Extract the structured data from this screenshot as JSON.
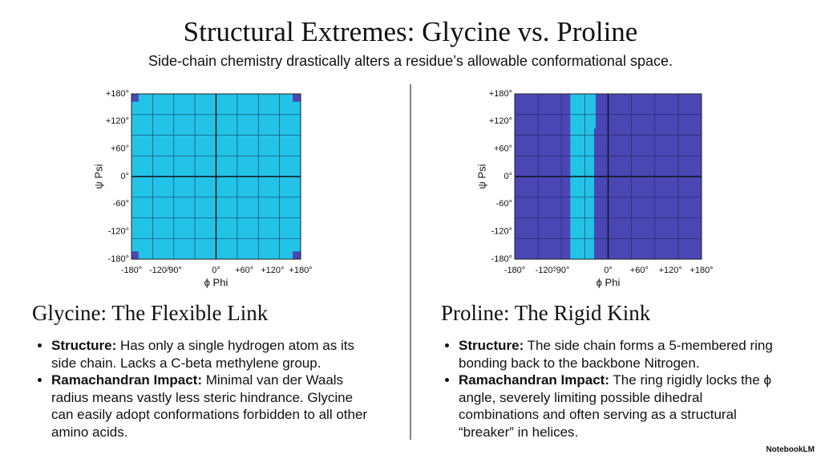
{
  "title": "Structural Extremes: Glycine vs. Proline",
  "subtitle": "Side-chain chemistry drastically alters a residue’s allowable conformational space.",
  "chart_data": [
    {
      "type": "region",
      "xlabel": "ϕ Phi",
      "ylabel": "ψ Psi",
      "xlim": [
        -180,
        180
      ],
      "ylim": [
        -180,
        180
      ],
      "xticks": [
        {
          "value": -180,
          "label": "-180°"
        },
        {
          "value": -120,
          "label": "-120°"
        },
        {
          "value": -90,
          "label": "-90°"
        },
        {
          "value": 0,
          "label": "0°"
        },
        {
          "value": 60,
          "label": "+60°"
        },
        {
          "value": 120,
          "label": "+120°"
        },
        {
          "value": 180,
          "label": "+180°"
        }
      ],
      "yticks": [
        {
          "value": 180,
          "label": "+180°"
        },
        {
          "value": 120,
          "label": "+120°"
        },
        {
          "value": 60,
          "label": "+60°"
        },
        {
          "value": 0,
          "label": "0°"
        },
        {
          "value": -60,
          "label": "-60°"
        },
        {
          "value": -120,
          "label": "-120°"
        },
        {
          "value": -180,
          "label": "-180°"
        }
      ],
      "xgrid": [
        -135,
        -90,
        -45,
        0,
        45,
        90,
        135
      ],
      "ygrid": [
        -135,
        -90,
        -45,
        0,
        45,
        90,
        135
      ],
      "background": "#4a46b4",
      "regions": [
        {
          "x": [
            -180,
            180
          ],
          "y": [
            -180,
            180
          ],
          "color": "#22c3e6"
        },
        {
          "x": [
            -180,
            -165
          ],
          "y": [
            163,
            180
          ],
          "color": "#4a46b4"
        },
        {
          "x": [
            163,
            180
          ],
          "y": [
            163,
            180
          ],
          "color": "#4a46b4"
        },
        {
          "x": [
            -180,
            -165
          ],
          "y": [
            -180,
            -163
          ],
          "color": "#4a46b4"
        },
        {
          "x": [
            163,
            180
          ],
          "y": [
            -180,
            -163
          ],
          "color": "#4a46b4"
        }
      ]
    },
    {
      "type": "region",
      "xlabel": "ϕ Phi",
      "ylabel": "ψ Psi",
      "xlim": [
        -180,
        180
      ],
      "ylim": [
        -180,
        180
      ],
      "xticks": [
        {
          "value": -180,
          "label": "-180°"
        },
        {
          "value": -120,
          "label": "-120°"
        },
        {
          "value": -90,
          "label": "-90°"
        },
        {
          "value": 0,
          "label": "0°"
        },
        {
          "value": 60,
          "label": "+60°"
        },
        {
          "value": 120,
          "label": "+120°"
        },
        {
          "value": 180,
          "label": "+180°"
        }
      ],
      "yticks": [
        {
          "value": 180,
          "label": "+180°"
        },
        {
          "value": 120,
          "label": "+120°"
        },
        {
          "value": 60,
          "label": "+60°"
        },
        {
          "value": 0,
          "label": "0°"
        },
        {
          "value": -60,
          "label": "-60°"
        },
        {
          "value": -120,
          "label": "-120°"
        },
        {
          "value": -180,
          "label": "-180°"
        }
      ],
      "xgrid": [
        -135,
        -90,
        -45,
        0,
        45,
        90,
        135
      ],
      "ygrid": [
        -135,
        -90,
        -45,
        0,
        45,
        90,
        135
      ],
      "background": "#4a46b4",
      "regions": [
        {
          "x": [
            -73,
            -27
          ],
          "y": [
            -180,
            180
          ],
          "color": "#22c3e6"
        },
        {
          "x": [
            -27,
            -24
          ],
          "y": [
            105,
            180
          ],
          "color": "#22c3e6"
        }
      ]
    }
  ],
  "panels": [
    {
      "heading": "Glycine: The Flexible Link",
      "bullets": [
        {
          "label": "Structure:",
          "text": "Has only a single hydrogen atom as its side chain. Lacks a C-beta methylene group."
        },
        {
          "label": "Ramachandran Impact:",
          "text": "Minimal van der Waals radius means vastly less steric hindrance. Glycine can easily adopt conformations forbidden to all other amino acids."
        }
      ]
    },
    {
      "heading": "Proline: The Rigid Kink",
      "bullets": [
        {
          "label": "Structure:",
          "text": "The side chain forms a 5-membered ring bonding back to the backbone Nitrogen."
        },
        {
          "label": "Ramachandran Impact:",
          "text": "The ring rigidly locks the ϕ angle, severely limiting possible dihedral combinations and often serving as a structural “breaker” in helices."
        }
      ]
    }
  ],
  "footer": "NotebookLM"
}
